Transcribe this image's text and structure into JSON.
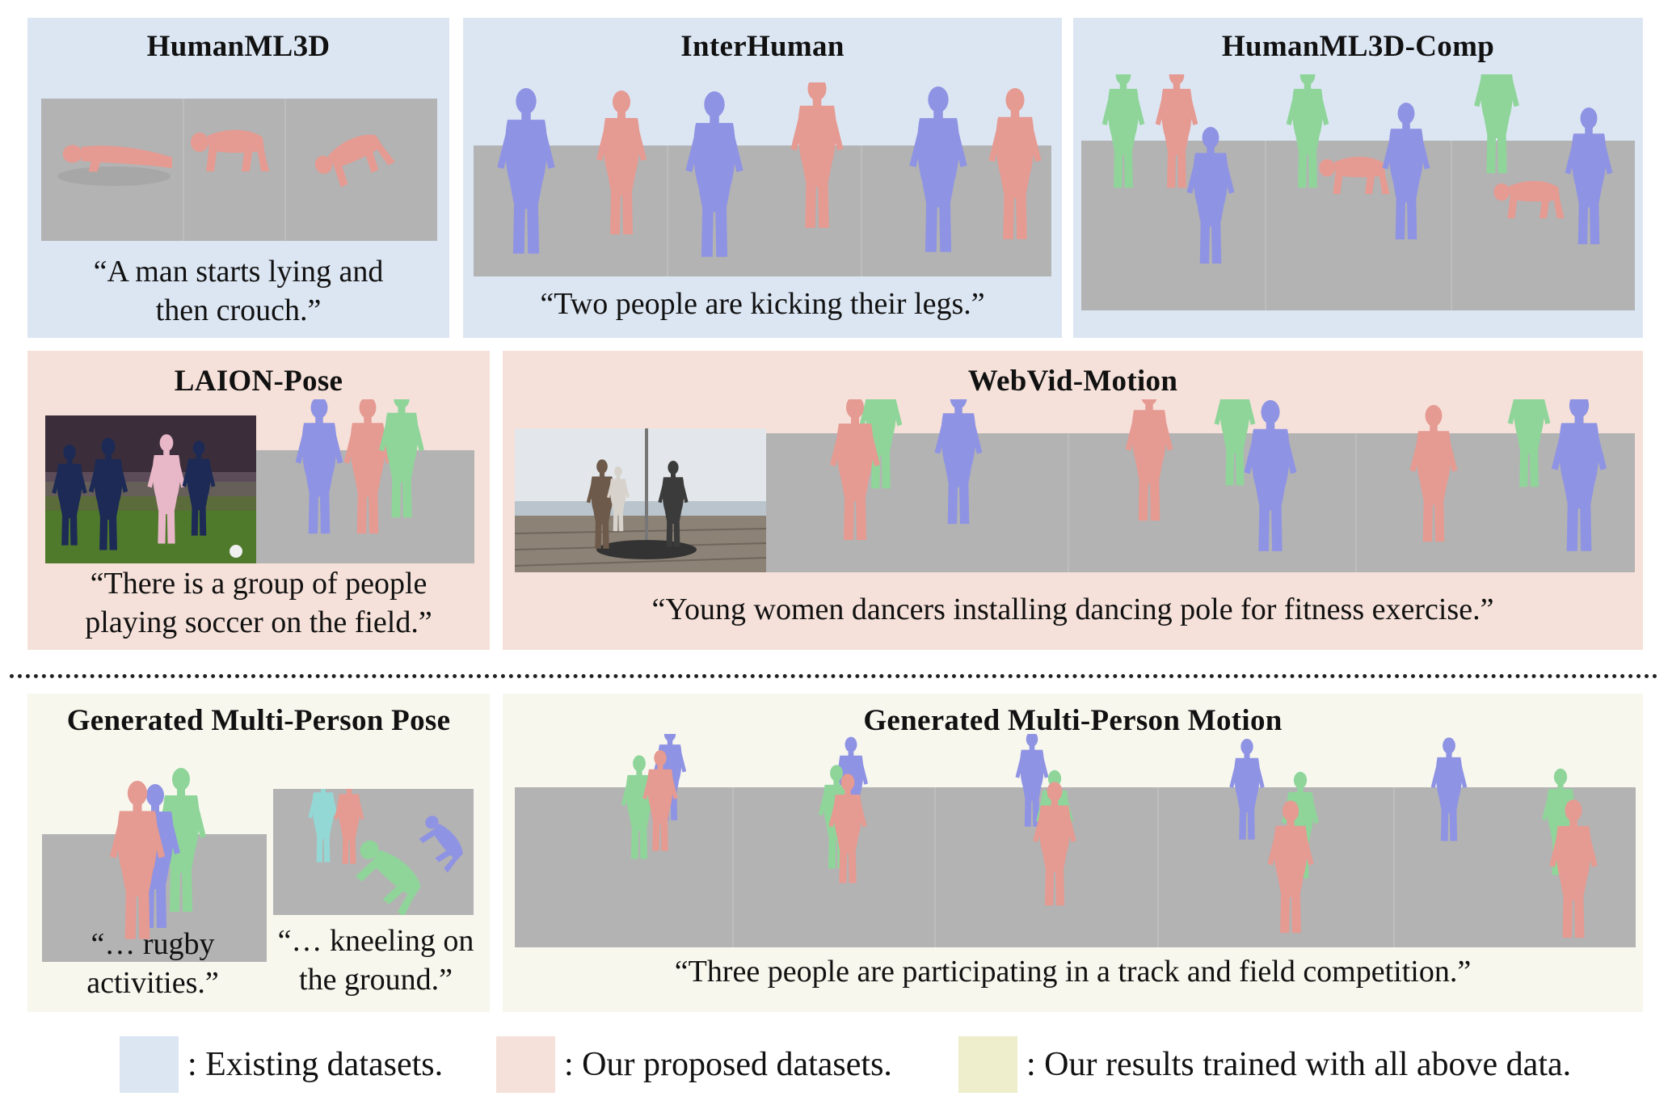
{
  "colors": {
    "existing": "#dce6f3",
    "proposed": "#f5e1d9",
    "results": "#f7f7ee",
    "floor": "#b3b3b3",
    "person_red": "#e59a92",
    "person_blue": "#8f93e3",
    "person_green": "#8fd59a",
    "person_cyan": "#93d8d4"
  },
  "panels": {
    "humanml3d": {
      "title": "HumanML3D",
      "caption": [
        "“A man starts lying and",
        "then crouch.”"
      ]
    },
    "interhuman": {
      "title": "InterHuman",
      "caption": [
        "“Two people are kicking their legs.”"
      ]
    },
    "humanml3d_comp": {
      "title": "HumanML3D-Comp"
    },
    "laion_pose": {
      "title": "LAION-Pose",
      "caption": [
        "“There is a group of people",
        "playing soccer on the field.”"
      ]
    },
    "webvid_motion": {
      "title": "WebVid-Motion",
      "caption": [
        "“Young women dancers installing dancing pole for fitness exercise.”"
      ]
    },
    "gen_pose": {
      "title": "Generated Multi-Person Pose",
      "caption_a": [
        "“… rugby",
        "activities.”"
      ],
      "caption_b": [
        "“… kneeling on",
        "the ground.”"
      ]
    },
    "gen_motion": {
      "title": "Generated Multi-Person Motion",
      "caption": [
        "“Three people are participating in a track and field competition.”"
      ]
    }
  },
  "legend": {
    "existing": ": Existing datasets.",
    "proposed": ": Our proposed datasets.",
    "results": ": Our results trained with all above data."
  }
}
